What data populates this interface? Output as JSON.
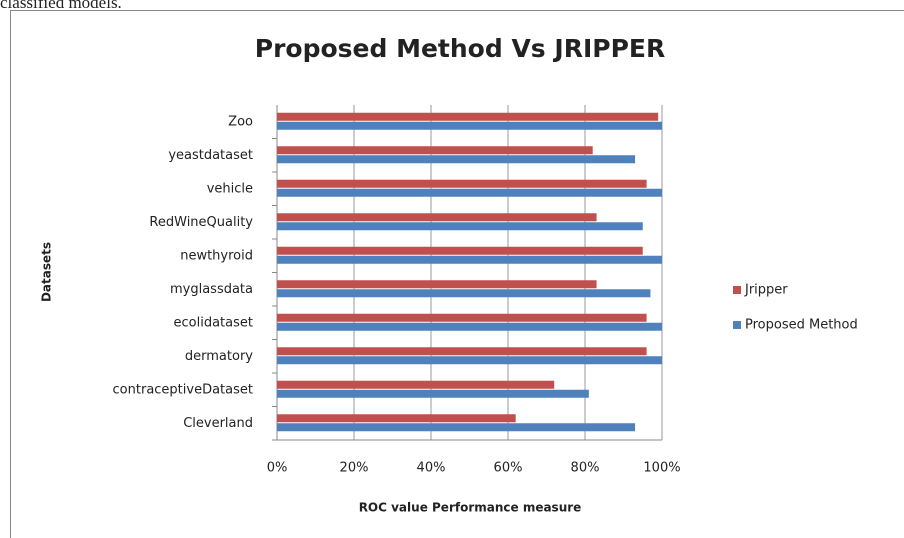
{
  "caption": "classified models.",
  "chart_data": {
    "type": "hbar",
    "title": "Proposed Method Vs JRIPPER",
    "ylabel": "Datasets",
    "xlabel": "ROC value Performance measure",
    "categories": [
      "Cleverland",
      "contraceptiveDataset",
      "dermatory",
      "ecolidataset",
      "myglassdata",
      "newthyroid",
      "RedWineQuality",
      "vehicle",
      "yeastdataset",
      "Zoo"
    ],
    "series": [
      {
        "name": "Jripper",
        "color": "#c0504d",
        "values": [
          62,
          72,
          96,
          96,
          83,
          95,
          83,
          96,
          82,
          99
        ]
      },
      {
        "name": "Proposed Method",
        "color": "#4f81bd",
        "values": [
          93,
          81,
          100,
          100,
          97,
          100,
          95,
          100,
          93,
          100
        ]
      }
    ],
    "xlim": [
      0,
      100
    ],
    "xticks": [
      {
        "value": 0,
        "label": "0%"
      },
      {
        "value": 20,
        "label": "20%"
      },
      {
        "value": 40,
        "label": "40%"
      },
      {
        "value": 60,
        "label": "60%"
      },
      {
        "value": 80,
        "label": "80%"
      },
      {
        "value": 100,
        "label": "100%"
      }
    ],
    "grid": true,
    "legend": "right"
  }
}
